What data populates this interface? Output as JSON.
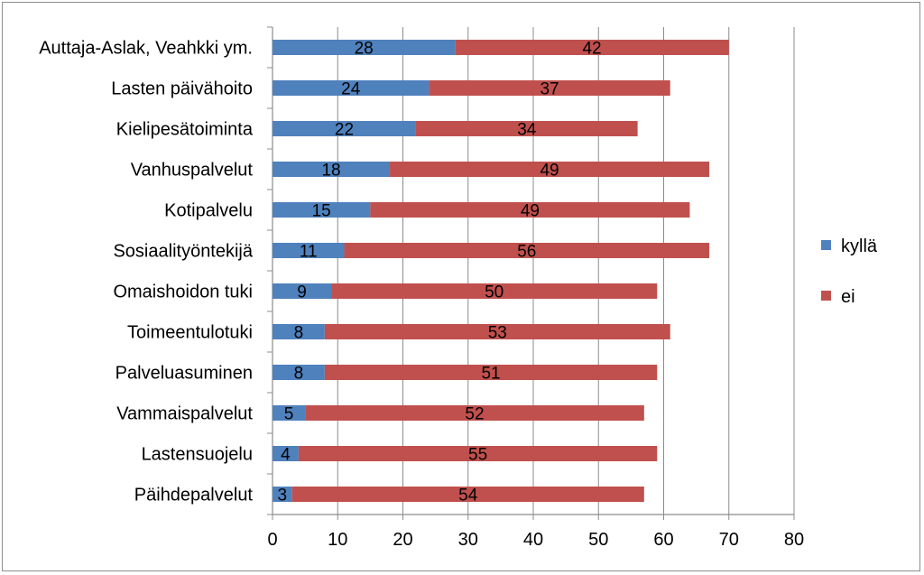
{
  "chart_data": {
    "type": "bar",
    "orientation": "horizontal",
    "stacked": true,
    "title": "",
    "xlabel": "",
    "ylabel": "",
    "xlim": [
      0,
      80
    ],
    "xticks": [
      "0",
      "10",
      "20",
      "30",
      "40",
      "50",
      "60",
      "70",
      "80"
    ],
    "grid": "vertical",
    "legend_position": "right",
    "categories": [
      "Auttaja-Aslak, Veahkki ym.",
      "Lasten päivähoito",
      "Kielipesätoiminta",
      "Vanhuspalvelut",
      "Kotipalvelu",
      "Sosiaalityöntekijä",
      "Omaishoidon tuki",
      "Toimeentulotuki",
      "Palveluasuminen",
      "Vammaispalvelut",
      "Lastensuojelu",
      "Päihdepalvelut"
    ],
    "series": [
      {
        "name": "kyllä",
        "color": "#4f81bd",
        "values": [
          28,
          24,
          22,
          18,
          15,
          11,
          9,
          8,
          8,
          5,
          4,
          3
        ]
      },
      {
        "name": "ei",
        "color": "#c0504d",
        "values": [
          42,
          37,
          34,
          49,
          49,
          56,
          50,
          53,
          51,
          52,
          55,
          54
        ]
      }
    ]
  }
}
